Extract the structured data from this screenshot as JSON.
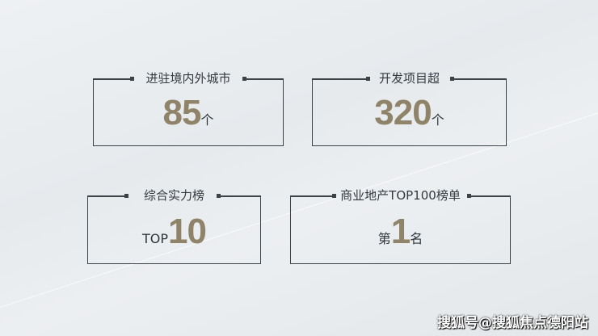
{
  "stats": [
    {
      "title": "进驻境内外城市",
      "prefix": "",
      "number": "85",
      "suffix": "个"
    },
    {
      "title": "开发项目超",
      "prefix": "",
      "number": "320",
      "suffix": "个"
    },
    {
      "title": "综合实力榜",
      "prefix": "TOP",
      "number": "10",
      "suffix": ""
    },
    {
      "title": "商业地产TOP100榜单",
      "prefix": "第",
      "number": "1",
      "suffix": "名"
    }
  ],
  "watermark": "搜狐号@搜狐焦点德阳站",
  "colors": {
    "number": "#8f836a",
    "line": "#3b4349"
  }
}
